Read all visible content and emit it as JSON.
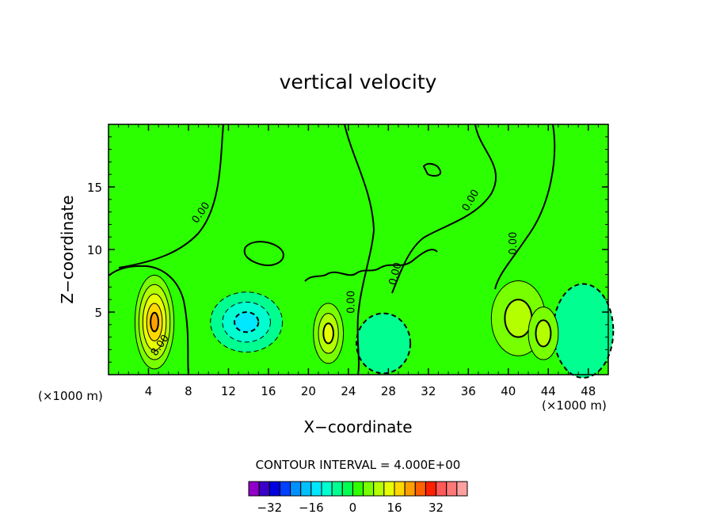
{
  "chart_data": {
    "type": "heatmap",
    "title": "vertical velocity",
    "xlabel": "X−coordinate",
    "ylabel": "Z−coordinate",
    "x_unit_left": "(×1000 m)",
    "x_unit_right": "(×1000 m)",
    "xlim": [
      0,
      50
    ],
    "ylim": [
      0,
      20
    ],
    "x_ticks": [
      4,
      8,
      12,
      16,
      20,
      24,
      28,
      32,
      36,
      40,
      44,
      48
    ],
    "y_ticks": [
      5,
      10,
      15
    ],
    "contour_interval_text": "CONTOUR INTERVAL = 4.000E+00",
    "contour_labels": [
      {
        "text": "0.00",
        "x": 9.5,
        "y": 12.8,
        "angle": -55
      },
      {
        "text": "0.00",
        "x": 36.5,
        "y": 13.8,
        "angle": -60
      },
      {
        "text": "0.00",
        "x": 40.8,
        "y": 10.5,
        "angle": -90
      },
      {
        "text": "0.00",
        "x": 24.6,
        "y": 5.8,
        "angle": -90
      },
      {
        "text": "0.00",
        "x": 29.0,
        "y": 8.0,
        "angle": -75
      },
      {
        "text": "8.00",
        "x": 5.4,
        "y": 2.2,
        "angle": -55
      }
    ],
    "colorbar": {
      "levels": [
        -36,
        -32,
        -28,
        -24,
        -20,
        -16,
        -12,
        -8,
        -4,
        0,
        4,
        8,
        12,
        16,
        20,
        24,
        28,
        32,
        36
      ],
      "colors": [
        "#9000c8",
        "#3a00c8",
        "#0000e0",
        "#0040ff",
        "#0090ff",
        "#00c0ff",
        "#00e8ff",
        "#00ffd0",
        "#00ff90",
        "#00ff50",
        "#30ff00",
        "#78ff00",
        "#b4ff00",
        "#e8ff00",
        "#ffd800",
        "#ffa000",
        "#ff6000",
        "#ff2000",
        "#ff5858",
        "#ff7878",
        "#ffa0a0"
      ],
      "tick_labels": [
        "−32",
        "−16",
        "0",
        "16",
        "32"
      ],
      "tick_values": [
        -32,
        -16,
        0,
        16,
        32
      ]
    },
    "field_features": [
      {
        "x": 4.6,
        "y": 4.2,
        "value": 20,
        "sx": 1.3,
        "sy": 2.5
      },
      {
        "x": 22.0,
        "y": 3.3,
        "value": 12,
        "sx": 1.0,
        "sy": 1.6
      },
      {
        "x": 13.8,
        "y": 4.2,
        "value": -12,
        "sx": 2.4,
        "sy": 1.6
      },
      {
        "x": 27.5,
        "y": 2.5,
        "value": -6,
        "sx": 1.8,
        "sy": 1.6
      },
      {
        "x": 47.5,
        "y": 3.5,
        "value": -6,
        "sx": 2.0,
        "sy": 2.5
      },
      {
        "x": 41.0,
        "y": 4.5,
        "value": 8,
        "sx": 1.8,
        "sy": 2.0
      },
      {
        "x": 43.5,
        "y": 3.3,
        "value": 8,
        "sx": 1.0,
        "sy": 1.4
      }
    ]
  }
}
